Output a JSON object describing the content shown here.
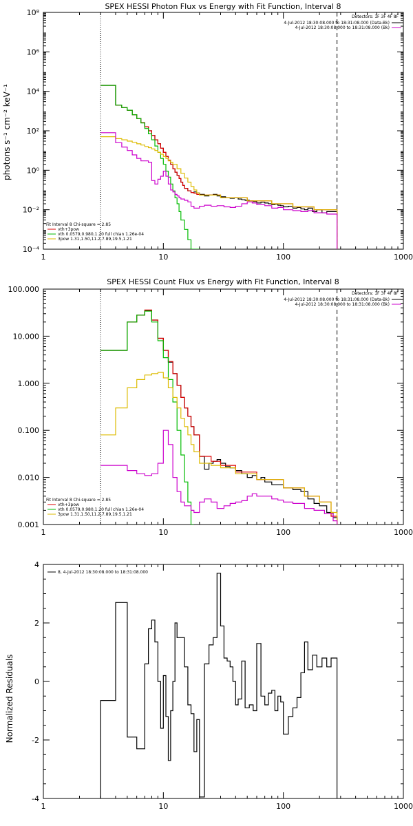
{
  "chart_data": [
    {
      "type": "line",
      "title": "SPEX HESSI Photon Flux vs Energy with Fit Function, Interval 8",
      "xlabel": "",
      "ylabel": "photons s⁻¹ cm⁻² keV⁻¹",
      "xscale": "log",
      "yscale": "log",
      "xlim": [
        1,
        1000
      ],
      "ylim": [
        0.0001,
        100000000
      ],
      "xticks": [
        "1",
        "10",
        "100",
        "1000"
      ],
      "yticks": [
        "10⁻⁴",
        "10⁻²",
        "10⁰",
        "10²",
        "10⁴",
        "10⁶",
        "10⁸"
      ],
      "vlines": [
        {
          "x": 3,
          "style": "dotted"
        },
        {
          "x": 280,
          "style": "dashed"
        }
      ],
      "legend_right": {
        "header": "Detectors: 1F 3F 4F 8F",
        "entries": [
          {
            "text": "4-Jul-2012 18:30:08.000 to 18:31:08.000 (Data-Bk)",
            "color": "#000000"
          },
          {
            "text": "4-Jul-2012 18:30:08.000 to 18:31:08.000 (Bk)",
            "color": "#cc00cc"
          }
        ]
      },
      "legend_left": {
        "header": "Fit Interval 8   Chi-square = 2.85",
        "entries": [
          {
            "text": "vth+3pow",
            "color": "#dd0000"
          },
          {
            "text": "vth 0.0579,0.980,1.20  full chian 1.26e-04",
            "color": "#00bb00"
          },
          {
            "text": "3pow 1.31,1.50,11.2,7.89,19.5,1.21",
            "color": "#ddbb00"
          }
        ]
      },
      "series": [
        {
          "color": "#000000",
          "x": [
            3,
            3.5,
            4,
            4.5,
            5,
            5.5,
            6,
            6.5,
            7,
            7.5,
            8,
            8.5,
            9,
            9.5,
            10,
            10.5,
            11,
            11.5,
            12,
            12.5,
            13,
            13.5,
            14,
            14.5,
            15,
            16,
            17,
            18,
            19,
            20,
            22,
            24,
            26,
            28,
            30,
            33,
            36,
            39,
            42,
            45,
            48,
            52,
            56,
            60,
            65,
            70,
            75,
            80,
            85,
            90,
            95,
            100,
            110,
            120,
            130,
            140,
            150,
            160,
            175,
            190,
            210,
            230,
            250,
            280
          ],
          "y": [
            20000,
            20000,
            2000,
            1500,
            1100,
            650,
            420,
            260,
            160,
            100,
            58,
            35,
            22,
            13,
            8,
            5,
            3.2,
            2,
            1.2,
            0.8,
            0.55,
            0.38,
            0.25,
            0.17,
            0.12,
            0.09,
            0.075,
            0.08,
            0.07,
            0.06,
            0.05,
            0.055,
            0.06,
            0.05,
            0.045,
            0.04,
            0.038,
            0.04,
            0.035,
            0.032,
            0.03,
            0.028,
            0.026,
            0.022,
            0.024,
            0.022,
            0.02,
            0.018,
            0.019,
            0.017,
            0.016,
            0.014,
            0.015,
            0.012,
            0.013,
            0.011,
            0.01,
            0.012,
            0.008,
            0.01,
            0.007,
            0.008,
            0.008,
            0.0001
          ]
        },
        {
          "color": "#dd0000",
          "x": [
            3,
            3.5,
            4,
            4.5,
            5,
            5.5,
            6,
            6.5,
            7,
            7.5,
            8,
            8.5,
            9,
            9.5,
            10,
            10.5,
            11,
            11.5,
            12,
            12.5,
            13,
            13.5,
            14,
            14.5,
            15,
            16,
            17,
            18,
            19,
            20,
            30,
            50,
            80,
            120,
            180,
            280
          ],
          "y": [
            20000,
            20000,
            2000,
            1500,
            1100,
            650,
            420,
            260,
            160,
            100,
            58,
            35,
            22,
            13,
            8,
            5,
            3.2,
            2,
            1.2,
            0.8,
            0.55,
            0.38,
            0.25,
            0.17,
            0.12,
            0.09,
            0.075,
            0.068,
            0.06,
            0.055,
            0.04,
            0.028,
            0.02,
            0.014,
            0.01,
            0.0001
          ]
        },
        {
          "color": "#00bb00",
          "x": [
            3,
            3.5,
            4,
            4.5,
            5,
            5.5,
            6,
            6.5,
            7,
            7.5,
            8,
            8.5,
            9,
            9.5,
            10,
            10.5,
            11,
            11.5,
            12,
            12.5,
            13,
            13.5,
            14,
            15,
            16,
            17,
            18,
            19,
            20
          ],
          "y": [
            20000,
            20000,
            2000,
            1500,
            1100,
            650,
            420,
            250,
            130,
            70,
            35,
            17,
            8,
            4,
            2,
            0.9,
            0.45,
            0.2,
            0.09,
            0.04,
            0.02,
            0.008,
            0.003,
            0.001,
            0.0003,
            0.0001,
            0.0001,
            0.0001,
            0.0001
          ]
        },
        {
          "color": "#ddbb00",
          "x": [
            3,
            3.5,
            4,
            4.5,
            5,
            5.5,
            6,
            6.5,
            7,
            7.5,
            8,
            8.5,
            9,
            9.5,
            10,
            10.5,
            11,
            11.5,
            12,
            13,
            14,
            15,
            16,
            17,
            18,
            19,
            20,
            30,
            50,
            80,
            120,
            180,
            280
          ],
          "y": [
            50,
            50,
            40,
            35,
            30,
            26,
            22,
            19,
            16,
            14,
            12,
            10,
            8,
            6.5,
            5,
            4,
            3,
            2.5,
            2,
            1.2,
            0.7,
            0.4,
            0.25,
            0.15,
            0.1,
            0.07,
            0.055,
            0.04,
            0.028,
            0.02,
            0.014,
            0.01,
            0.0001
          ]
        },
        {
          "color": "#cc00cc",
          "x": [
            3,
            3.5,
            4,
            4.5,
            5,
            5.5,
            6,
            6.5,
            7,
            7.5,
            8,
            8.5,
            9,
            9.5,
            10,
            10.5,
            11,
            11.5,
            12,
            12.5,
            13,
            13.5,
            14,
            15,
            16,
            17,
            18,
            20,
            22,
            25,
            28,
            32,
            36,
            40,
            45,
            50,
            55,
            60,
            70,
            80,
            90,
            100,
            120,
            140,
            160,
            180,
            200,
            230,
            260,
            280
          ],
          "y": [
            80,
            80,
            25,
            15,
            10,
            6,
            4,
            3,
            3,
            2.5,
            0.3,
            0.2,
            0.35,
            0.5,
            0.9,
            0.5,
            0.2,
            0.1,
            0.08,
            0.06,
            0.05,
            0.04,
            0.035,
            0.03,
            0.025,
            0.015,
            0.012,
            0.015,
            0.017,
            0.015,
            0.016,
            0.014,
            0.013,
            0.015,
            0.02,
            0.025,
            0.022,
            0.018,
            0.016,
            0.012,
            0.013,
            0.01,
            0.009,
            0.008,
            0.009,
            0.007,
            0.007,
            0.006,
            0.006,
            0.0001
          ]
        }
      ]
    },
    {
      "type": "line",
      "title": "SPEX HESSI Count Flux vs Energy with Fit Function, Interval 8",
      "xlabel": "",
      "ylabel": "",
      "xscale": "log",
      "yscale": "log",
      "xlim": [
        1,
        1000
      ],
      "ylim": [
        0.001,
        100
      ],
      "xticks": [
        "1",
        "10",
        "100",
        "1000"
      ],
      "yticks": [
        "0.001",
        "0.010",
        "0.100",
        "1.000",
        "10.000",
        "100.000"
      ],
      "vlines": [
        {
          "x": 3,
          "style": "dotted"
        },
        {
          "x": 280,
          "style": "dashed"
        }
      ],
      "legend_right": {
        "header": "Detectors: 1F 3F 4F 8F",
        "entries": [
          {
            "text": "4-Jul-2012 18:30:08.000 to 18:31:08.000 (Data-Bk)",
            "color": "#000000"
          },
          {
            "text": "4-Jul-2012 18:30:08.000 to 18:31:08.000 (Bk)",
            "color": "#cc00cc"
          }
        ]
      },
      "legend_left": {
        "header": "Fit Interval 8   Chi-square = 2.85",
        "entries": [
          {
            "text": "vth+3pow",
            "color": "#dd0000"
          },
          {
            "text": "vth 0.0579,0.980,1.20  full chian 1.26e-04",
            "color": "#00bb00"
          },
          {
            "text": "3pow 1.31,1.50,11.2,7.89,19.5,1.21",
            "color": "#ddbb00"
          }
        ]
      },
      "series": [
        {
          "color": "#000000",
          "x": [
            3,
            4,
            5,
            6,
            7,
            8,
            9,
            10,
            11,
            12,
            13,
            14,
            15,
            16,
            17,
            18,
            20,
            22,
            24,
            26,
            28,
            30,
            33,
            36,
            40,
            45,
            50,
            55,
            60,
            65,
            70,
            80,
            90,
            100,
            120,
            140,
            160,
            180,
            200,
            230,
            260,
            280
          ],
          "y": [
            5,
            5,
            20,
            28,
            35,
            22,
            9,
            5,
            2.8,
            1.6,
            0.9,
            0.5,
            0.3,
            0.2,
            0.12,
            0.08,
            0.028,
            0.015,
            0.02,
            0.022,
            0.024,
            0.02,
            0.017,
            0.016,
            0.014,
            0.012,
            0.01,
            0.011,
            0.009,
            0.01,
            0.008,
            0.007,
            0.007,
            0.006,
            0.0055,
            0.005,
            0.0035,
            0.0028,
            0.0025,
            0.0018,
            0.0014,
            0.001
          ]
        },
        {
          "color": "#dd0000",
          "x": [
            3,
            4,
            5,
            6,
            7,
            8,
            9,
            10,
            11,
            12,
            13,
            14,
            15,
            16,
            17,
            18,
            20,
            25,
            30,
            40,
            60,
            100,
            150,
            200,
            250,
            280
          ],
          "y": [
            5,
            5,
            20,
            28,
            36,
            22,
            9,
            5,
            2.9,
            1.6,
            0.9,
            0.5,
            0.3,
            0.2,
            0.12,
            0.08,
            0.028,
            0.022,
            0.018,
            0.013,
            0.009,
            0.006,
            0.004,
            0.003,
            0.0015,
            0.001
          ]
        },
        {
          "color": "#00bb00",
          "x": [
            3,
            4,
            5,
            6,
            7,
            8,
            9,
            10,
            11,
            12,
            13,
            14,
            15,
            16,
            17,
            18
          ],
          "y": [
            5,
            5,
            20,
            28,
            34,
            20,
            8,
            3.5,
            1.2,
            0.4,
            0.1,
            0.03,
            0.008,
            0.003,
            0.001,
            0.001
          ]
        },
        {
          "color": "#ddbb00",
          "x": [
            3,
            4,
            5,
            6,
            7,
            8,
            9,
            10,
            11,
            12,
            13,
            14,
            15,
            16,
            17,
            18,
            20,
            25,
            30,
            40,
            60,
            100,
            150,
            200,
            250,
            280
          ],
          "y": [
            0.08,
            0.3,
            0.8,
            1.2,
            1.5,
            1.6,
            1.7,
            1.3,
            0.8,
            0.5,
            0.3,
            0.18,
            0.12,
            0.08,
            0.05,
            0.035,
            0.02,
            0.018,
            0.016,
            0.012,
            0.009,
            0.006,
            0.004,
            0.003,
            0.0018,
            0.001
          ]
        },
        {
          "color": "#cc00cc",
          "x": [
            3,
            4,
            5,
            6,
            7,
            8,
            9,
            10,
            11,
            12,
            13,
            14,
            15,
            16,
            17,
            18,
            20,
            22,
            25,
            28,
            32,
            36,
            40,
            45,
            50,
            55,
            60,
            70,
            80,
            90,
            100,
            120,
            150,
            180,
            220,
            260,
            280
          ],
          "y": [
            0.018,
            0.018,
            0.014,
            0.012,
            0.011,
            0.012,
            0.02,
            0.1,
            0.05,
            0.01,
            0.005,
            0.003,
            0.0025,
            0.0025,
            0.002,
            0.0018,
            0.003,
            0.0035,
            0.003,
            0.0022,
            0.0025,
            0.0028,
            0.003,
            0.0032,
            0.004,
            0.0045,
            0.004,
            0.004,
            0.0035,
            0.0033,
            0.003,
            0.0028,
            0.0022,
            0.002,
            0.0017,
            0.0012,
            0.001
          ]
        }
      ]
    },
    {
      "type": "line",
      "title": "",
      "xlabel": "",
      "ylabel": "Normalized Residuals",
      "xscale": "log",
      "yscale": "linear",
      "xlim": [
        1,
        1000
      ],
      "ylim": [
        -4,
        4
      ],
      "xticks": [
        "1",
        "10",
        "100",
        "1000"
      ],
      "yticks": [
        "-4",
        "-2",
        "0",
        "2",
        "4"
      ],
      "legend_left": {
        "entries": [
          {
            "text": "8,  4-Jul-2012 18:30:08.000 to 18:31:08.000",
            "color": "#000000"
          }
        ]
      },
      "series": [
        {
          "color": "#000000",
          "edges": [
            3,
            4,
            4.5,
            5,
            5.5,
            6,
            6.5,
            7,
            7.5,
            8,
            8.5,
            9,
            9.5,
            10,
            10.5,
            11,
            11.5,
            12,
            12.5,
            13,
            14,
            15,
            16,
            17,
            18,
            19,
            20,
            22,
            24,
            26,
            28,
            30,
            32,
            34,
            36,
            38,
            40,
            42,
            45,
            48,
            52,
            56,
            60,
            65,
            70,
            75,
            80,
            85,
            90,
            95,
            100,
            110,
            120,
            130,
            140,
            150,
            160,
            175,
            190,
            210,
            230,
            250,
            280
          ],
          "values": [
            -0.65,
            2.7,
            2.7,
            -1.9,
            -1.9,
            -2.3,
            -2.3,
            0.6,
            1.8,
            2.1,
            1.35,
            0.0,
            -1.6,
            0.2,
            -1.2,
            -2.7,
            -1.0,
            0.0,
            2.0,
            1.5,
            1.5,
            0.5,
            -0.8,
            -1.1,
            -2.4,
            -1.3,
            -3.95,
            0.6,
            1.25,
            1.5,
            3.7,
            1.9,
            0.8,
            0.7,
            0.5,
            0.0,
            -0.8,
            -0.6,
            0.7,
            -0.9,
            -0.8,
            -1.0,
            1.3,
            -0.5,
            -0.8,
            -0.4,
            -0.3,
            -1.0,
            -0.5,
            -0.7,
            -1.8,
            -1.2,
            -0.9,
            -0.55,
            0.3,
            1.35,
            0.4,
            0.9,
            0.5,
            0.8,
            0.5,
            0.8
          ]
        }
      ]
    }
  ]
}
